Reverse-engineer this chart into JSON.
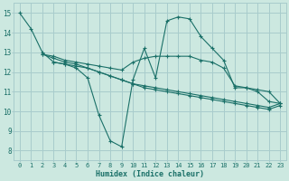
{
  "xlabel": "Humidex (Indice chaleur)",
  "xlim": [
    -0.5,
    23.5
  ],
  "ylim": [
    7.5,
    15.5
  ],
  "xticks": [
    0,
    1,
    2,
    3,
    4,
    5,
    6,
    7,
    8,
    9,
    10,
    11,
    12,
    13,
    14,
    15,
    16,
    17,
    18,
    19,
    20,
    21,
    22,
    23
  ],
  "yticks": [
    8,
    9,
    10,
    11,
    12,
    13,
    14,
    15
  ],
  "background_color": "#cce8e0",
  "grid_color": "#a8cccc",
  "line_color": "#1a7068",
  "lines": [
    {
      "x": [
        0,
        1,
        2,
        3,
        4,
        5,
        6,
        7,
        8,
        9,
        10,
        11,
        12,
        13,
        14,
        15,
        16,
        17,
        18,
        19,
        20,
        21,
        22,
        23
      ],
      "y": [
        15.0,
        14.2,
        13.0,
        12.5,
        12.4,
        12.2,
        11.7,
        9.8,
        8.5,
        8.2,
        11.6,
        13.2,
        11.7,
        14.6,
        14.8,
        14.7,
        13.8,
        13.2,
        12.6,
        11.2,
        11.2,
        11.0,
        10.5,
        10.4
      ]
    },
    {
      "x": [
        2,
        3,
        4,
        5,
        6,
        7,
        8,
        9,
        10,
        11,
        12,
        13,
        14,
        15,
        16,
        17,
        18,
        19,
        20,
        21,
        22,
        23
      ],
      "y": [
        12.9,
        12.8,
        12.6,
        12.5,
        12.4,
        12.3,
        12.2,
        12.1,
        12.5,
        12.7,
        12.8,
        12.8,
        12.8,
        12.8,
        12.6,
        12.5,
        12.2,
        11.3,
        11.2,
        11.1,
        11.0,
        10.4
      ]
    },
    {
      "x": [
        2,
        3,
        4,
        5,
        6,
        7,
        8,
        9,
        10,
        11,
        12,
        13,
        14,
        15,
        16,
        17,
        18,
        19,
        20,
        21,
        22,
        23
      ],
      "y": [
        12.9,
        12.7,
        12.5,
        12.4,
        12.2,
        12.0,
        11.8,
        11.6,
        11.4,
        11.3,
        11.2,
        11.1,
        11.0,
        10.9,
        10.8,
        10.7,
        10.6,
        10.5,
        10.4,
        10.3,
        10.2,
        10.4
      ]
    },
    {
      "x": [
        3,
        4,
        5,
        6,
        7,
        8,
        9,
        10,
        11,
        12,
        13,
        14,
        15,
        16,
        17,
        18,
        19,
        20,
        21,
        22,
        23
      ],
      "y": [
        12.5,
        12.4,
        12.3,
        12.2,
        12.0,
        11.8,
        11.6,
        11.4,
        11.2,
        11.1,
        11.0,
        10.9,
        10.8,
        10.7,
        10.6,
        10.5,
        10.4,
        10.3,
        10.2,
        10.1,
        10.3
      ]
    }
  ]
}
